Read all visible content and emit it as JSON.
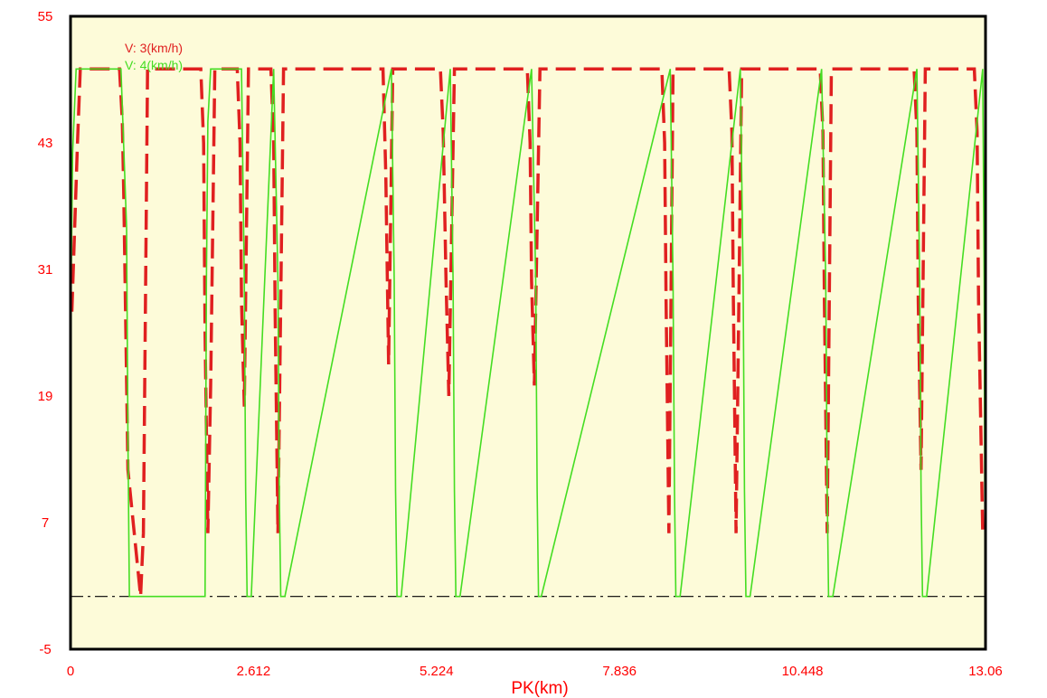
{
  "chart_data": {
    "type": "line",
    "title": "",
    "xlabel": "PK(km)",
    "ylabel": "",
    "xlim": [
      0,
      13.06
    ],
    "ylim": [
      -5,
      55
    ],
    "x_ticks": [
      "0",
      "2.612",
      "5.224",
      "7.836",
      "10.448",
      "13.06"
    ],
    "y_ticks": [
      "55",
      "43",
      "31",
      "19",
      "7",
      "-5"
    ],
    "grid": false,
    "legend_position": "top-left",
    "background_color": "#fdfbd9",
    "tick_color": "#ff0000",
    "reference_line": {
      "y": 0,
      "style": "dash-dot",
      "color": "#000000"
    },
    "series": [
      {
        "name": "V: 3(km/h)",
        "color": "#e02020",
        "x": [
          0.02,
          0.1,
          0.14,
          0.7,
          0.74,
          0.76,
          0.82,
          1.0,
          1.04,
          1.1,
          1.86,
          1.9,
          1.92,
          1.96,
          2.0,
          2.06,
          2.38,
          2.42,
          2.44,
          2.48,
          2.54,
          2.86,
          2.9,
          2.92,
          2.96,
          3.04,
          4.46,
          4.5,
          4.54,
          4.6,
          5.28,
          5.32,
          5.36,
          5.4,
          5.48,
          6.52,
          6.56,
          6.58,
          6.62,
          6.7,
          8.44,
          8.48,
          8.5,
          8.54,
          8.6,
          9.4,
          9.44,
          9.46,
          9.5,
          9.58,
          10.7,
          10.74,
          10.76,
          10.8,
          10.86,
          12.04,
          12.08,
          12.1,
          12.14,
          12.2,
          12.9,
          12.94,
          12.96,
          13.02,
          13.06
        ],
        "y": [
          27,
          43,
          50,
          50,
          45,
          38,
          12,
          0,
          6,
          50,
          50,
          43,
          25,
          6,
          20,
          50,
          50,
          43,
          28,
          18,
          50,
          50,
          43,
          27,
          6,
          50,
          50,
          40,
          22,
          50,
          50,
          44,
          30,
          19,
          50,
          50,
          43,
          30,
          20,
          50,
          50,
          43,
          28,
          6,
          50,
          50,
          44,
          29,
          6,
          50,
          50,
          44,
          28,
          6,
          50,
          50,
          44,
          28,
          12,
          50,
          50,
          44,
          28,
          6,
          6
        ]
      },
      {
        "name": "V: 4(km/h)",
        "color": "#44dd22",
        "x": [
          0.0,
          0.03,
          0.08,
          0.15,
          0.72,
          0.8,
          0.82,
          0.84,
          1.92,
          1.94,
          1.96,
          2.0,
          2.04,
          2.08,
          2.44,
          2.48,
          2.5,
          2.52,
          2.58,
          2.9,
          2.96,
          2.98,
          3.0,
          3.06,
          4.58,
          4.62,
          4.64,
          4.66,
          4.72,
          5.42,
          5.46,
          5.48,
          5.5,
          5.56,
          6.58,
          6.64,
          6.66,
          6.68,
          6.72,
          8.56,
          8.6,
          8.62,
          8.64,
          8.7,
          9.56,
          9.6,
          9.62,
          9.64,
          9.7,
          10.72,
          10.78,
          10.8,
          10.82,
          10.88,
          12.08,
          12.12,
          12.14,
          12.16,
          12.22,
          13.02,
          13.04,
          13.05,
          13.06
        ],
        "y": [
          25,
          42,
          50,
          50,
          50,
          35,
          15,
          0,
          0,
          30,
          45,
          50,
          50,
          50,
          50,
          30,
          10,
          0,
          0,
          50,
          30,
          10,
          0,
          0,
          50,
          30,
          10,
          0,
          0,
          50,
          30,
          10,
          0,
          0,
          50,
          30,
          10,
          0,
          0,
          50,
          30,
          10,
          0,
          0,
          50,
          30,
          10,
          0,
          0,
          50,
          30,
          10,
          0,
          0,
          50,
          30,
          10,
          0,
          0,
          50,
          30,
          10,
          0
        ]
      }
    ]
  }
}
